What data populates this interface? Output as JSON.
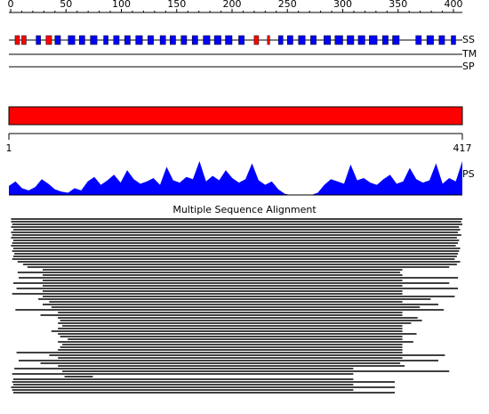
{
  "ruler": {
    "ticks": [
      0,
      50,
      100,
      150,
      200,
      250,
      300,
      350,
      400
    ]
  },
  "tracks": {
    "ss": {
      "label": "SS",
      "red_color": "#ff0000",
      "blue_color": "#0000ff",
      "red_segments": [
        [
          4,
          8
        ],
        [
          10,
          14
        ],
        [
          32,
          37
        ],
        [
          220,
          224
        ],
        [
          232,
          234
        ]
      ],
      "blue_segments": [
        [
          23,
          27
        ],
        [
          40,
          45
        ],
        [
          52,
          58
        ],
        [
          62,
          67
        ],
        [
          72,
          78
        ],
        [
          84,
          88
        ],
        [
          93,
          98
        ],
        [
          103,
          108
        ],
        [
          113,
          119
        ],
        [
          124,
          129
        ],
        [
          135,
          140
        ],
        [
          144,
          149
        ],
        [
          154,
          159
        ],
        [
          164,
          169
        ],
        [
          174,
          180
        ],
        [
          184,
          190
        ],
        [
          194,
          200
        ],
        [
          206,
          211
        ],
        [
          242,
          246
        ],
        [
          250,
          255
        ],
        [
          260,
          266
        ],
        [
          271,
          276
        ],
        [
          283,
          289
        ],
        [
          293,
          300
        ],
        [
          304,
          310
        ],
        [
          314,
          320
        ],
        [
          324,
          331
        ],
        [
          336,
          341
        ],
        [
          345,
          351
        ],
        [
          366,
          371
        ],
        [
          376,
          382
        ],
        [
          387,
          392
        ],
        [
          398,
          402
        ]
      ]
    },
    "tm": {
      "label": "TM"
    },
    "sp": {
      "label": "SP"
    }
  },
  "domain_bar": {
    "color": "#ff0000",
    "start": 1,
    "end": 417
  },
  "ps": {
    "label": "PS",
    "color": "#0000ff",
    "values": [
      8,
      12,
      6,
      4,
      7,
      14,
      10,
      5,
      3,
      2,
      6,
      4,
      12,
      16,
      9,
      13,
      18,
      11,
      22,
      14,
      10,
      12,
      15,
      9,
      25,
      13,
      11,
      16,
      14,
      30,
      12,
      17,
      13,
      22,
      15,
      11,
      14,
      28,
      13,
      9,
      12,
      5,
      1,
      0,
      0,
      0,
      0,
      2,
      9,
      14,
      12,
      10,
      27,
      13,
      15,
      11,
      9,
      14,
      18,
      10,
      12,
      24,
      14,
      11,
      13,
      28,
      10,
      15,
      12,
      30
    ]
  },
  "msa": {
    "title": "Multiple Sequence Alignment",
    "rows": [
      [
        3,
        417
      ],
      [
        3,
        416
      ],
      [
        4,
        417
      ],
      [
        3,
        414
      ],
      [
        5,
        415
      ],
      [
        3,
        413
      ],
      [
        4,
        416
      ],
      [
        3,
        412
      ],
      [
        5,
        414
      ],
      [
        4,
        413
      ],
      [
        3,
        411
      ],
      [
        5,
        415
      ],
      [
        4,
        414
      ],
      [
        6,
        413
      ],
      [
        5,
        412
      ],
      [
        4,
        410
      ],
      [
        9,
        415
      ],
      [
        14,
        412
      ],
      [
        18,
        405
      ],
      [
        32,
        362
      ],
      [
        9,
        360
      ],
      [
        32,
        362
      ],
      [
        10,
        413
      ],
      [
        32,
        362
      ],
      [
        5,
        405
      ],
      [
        32,
        362
      ],
      [
        8,
        413
      ],
      [
        32,
        362
      ],
      [
        4,
        362
      ],
      [
        32,
        410
      ],
      [
        28,
        388
      ],
      [
        38,
        362
      ],
      [
        32,
        395
      ],
      [
        40,
        378
      ],
      [
        7,
        400
      ],
      [
        46,
        362
      ],
      [
        30,
        362
      ],
      [
        46,
        376
      ],
      [
        48,
        380
      ],
      [
        46,
        370
      ],
      [
        50,
        362
      ],
      [
        46,
        362
      ],
      [
        40,
        362
      ],
      [
        46,
        375
      ],
      [
        48,
        362
      ],
      [
        55,
        362
      ],
      [
        46,
        372
      ],
      [
        50,
        362
      ],
      [
        48,
        362
      ],
      [
        46,
        362
      ],
      [
        8,
        362
      ],
      [
        38,
        401
      ],
      [
        46,
        362
      ],
      [
        10,
        395
      ],
      [
        30,
        360
      ],
      [
        46,
        364
      ],
      [
        6,
        317
      ],
      [
        50,
        405
      ],
      [
        4,
        317
      ],
      [
        52,
        78
      ],
      [
        5,
        317
      ],
      [
        4,
        355
      ],
      [
        5,
        317
      ],
      [
        3,
        355
      ],
      [
        4,
        317
      ],
      [
        5,
        355
      ]
    ]
  }
}
